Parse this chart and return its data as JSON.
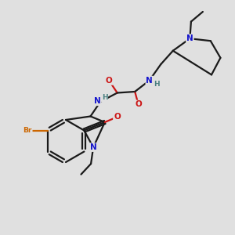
{
  "bg_color": "#e0e0e0",
  "bond_color": "#1a1a1a",
  "N_color": "#1515cc",
  "O_color": "#cc1515",
  "Br_color": "#cc6600",
  "H_color": "#4a8080",
  "bond_width": 1.6,
  "font_size_atom": 7.5,
  "font_size_small": 6.5,
  "xlim": [
    0,
    10
  ],
  "ylim": [
    0,
    10
  ]
}
